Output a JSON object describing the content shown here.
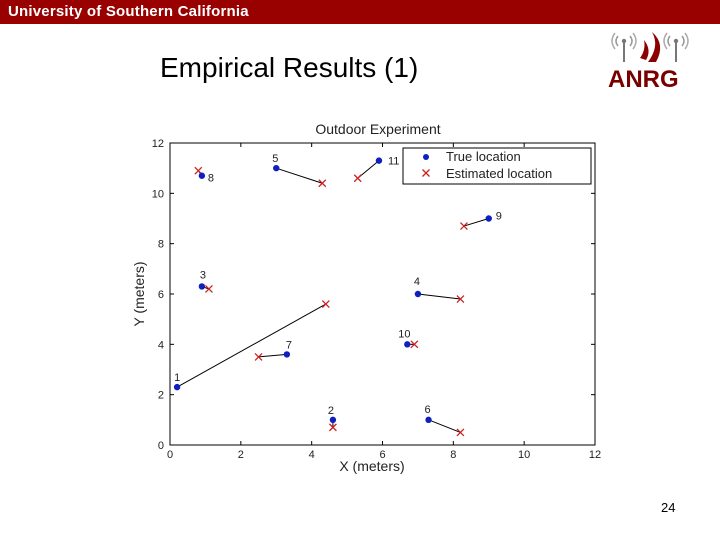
{
  "header": {
    "university": "University of Southern California"
  },
  "logo": {
    "text": "ANRG"
  },
  "slide": {
    "title": "Empirical Results (1)",
    "page_number": "24"
  },
  "colors": {
    "banner": "#990000",
    "true_marker": "#1020c0",
    "estimated_marker": "#cc2222",
    "error_line": "#000000"
  },
  "chart_data": {
    "type": "scatter",
    "title": "Outdoor Experiment",
    "xlabel": "X (meters)",
    "ylabel": "Y (meters)",
    "xlim": [
      0,
      12
    ],
    "ylim": [
      0,
      12
    ],
    "xticks": [
      "0",
      "2",
      "4",
      "6",
      "8",
      "10",
      "12"
    ],
    "yticks": [
      "0",
      "2",
      "4",
      "6",
      "8",
      "10",
      "12"
    ],
    "grid": false,
    "legend_position": "top-right",
    "series": [
      {
        "name": "True location",
        "marker": "dot",
        "points": [
          {
            "id": "1",
            "x": 0.2,
            "y": 2.3
          },
          {
            "id": "2",
            "x": 4.6,
            "y": 1.0
          },
          {
            "id": "3",
            "x": 0.9,
            "y": 6.3
          },
          {
            "id": "4",
            "x": 7.0,
            "y": 6.0
          },
          {
            "id": "5",
            "x": 3.0,
            "y": 11.0
          },
          {
            "id": "6",
            "x": 7.3,
            "y": 1.0
          },
          {
            "id": "7",
            "x": 3.3,
            "y": 3.6
          },
          {
            "id": "8",
            "x": 0.9,
            "y": 10.7
          },
          {
            "id": "9",
            "x": 9.0,
            "y": 9.0
          },
          {
            "id": "10",
            "x": 6.7,
            "y": 4.0
          },
          {
            "id": "11",
            "x": 5.9,
            "y": 11.3
          }
        ]
      },
      {
        "name": "Estimated location",
        "marker": "x",
        "points": [
          {
            "id": "1",
            "x": 4.4,
            "y": 5.6
          },
          {
            "id": "2",
            "x": 4.6,
            "y": 0.7
          },
          {
            "id": "3",
            "x": 1.1,
            "y": 6.2
          },
          {
            "id": "4",
            "x": 8.2,
            "y": 5.8
          },
          {
            "id": "5",
            "x": 4.3,
            "y": 10.4
          },
          {
            "id": "6",
            "x": 8.2,
            "y": 0.5
          },
          {
            "id": "7",
            "x": 2.5,
            "y": 3.5
          },
          {
            "id": "8",
            "x": 0.8,
            "y": 10.9
          },
          {
            "id": "9",
            "x": 8.3,
            "y": 8.7
          },
          {
            "id": "10",
            "x": 6.9,
            "y": 4.0
          },
          {
            "id": "11",
            "x": 5.3,
            "y": 10.6
          }
        ]
      }
    ]
  }
}
